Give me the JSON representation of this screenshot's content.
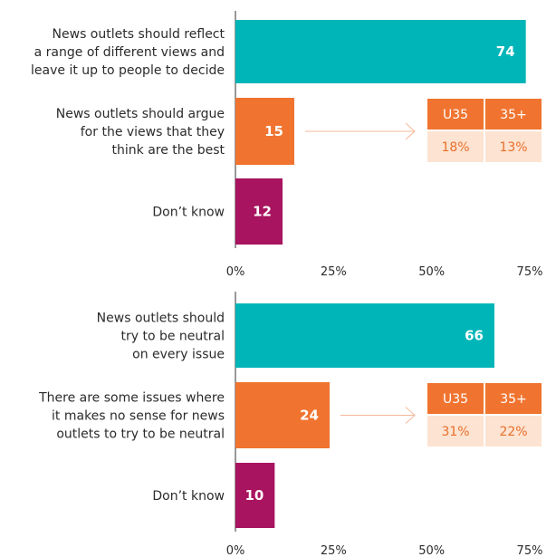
{
  "colors": {
    "teal": "#00b5b8",
    "orange": "#f07430",
    "magenta": "#a8145f",
    "age_header_bg": "#f07430",
    "age_value_bg": "#fde3d2",
    "arrow": "#f5b89a",
    "axis": "#333333"
  },
  "chart_data": [
    {
      "type": "bar",
      "orientation": "horizontal",
      "categories": [
        [
          "News outlets should reflect",
          "a range of different views and",
          "leave it up to people to decide"
        ],
        [
          "News outlets should argue",
          "for the views that they",
          "think are the best"
        ],
        [
          "Don’t know"
        ]
      ],
      "values": [
        74,
        15,
        12
      ],
      "value_labels": [
        "74",
        "15",
        "12"
      ],
      "x_ticks": [
        "0%",
        "25%",
        "50%",
        "75%"
      ],
      "xlim": [
        0,
        75
      ],
      "grid": false,
      "age_breakdown": {
        "category_index": 1,
        "headers": [
          "U35",
          "35+"
        ],
        "values": [
          "18%",
          "13%"
        ]
      }
    },
    {
      "type": "bar",
      "orientation": "horizontal",
      "categories": [
        [
          "News outlets should",
          "try to be neutral",
          "on every issue"
        ],
        [
          "There are some issues where",
          "it makes no sense for news",
          "outlets to try to be neutral"
        ],
        [
          "Don’t know"
        ]
      ],
      "values": [
        66,
        24,
        10
      ],
      "value_labels": [
        "66",
        "24",
        "10"
      ],
      "x_ticks": [
        "0%",
        "25%",
        "50%",
        "75%"
      ],
      "xlim": [
        0,
        75
      ],
      "grid": false,
      "age_breakdown": {
        "category_index": 1,
        "headers": [
          "U35",
          "35+"
        ],
        "values": [
          "31%",
          "22%"
        ]
      }
    }
  ]
}
